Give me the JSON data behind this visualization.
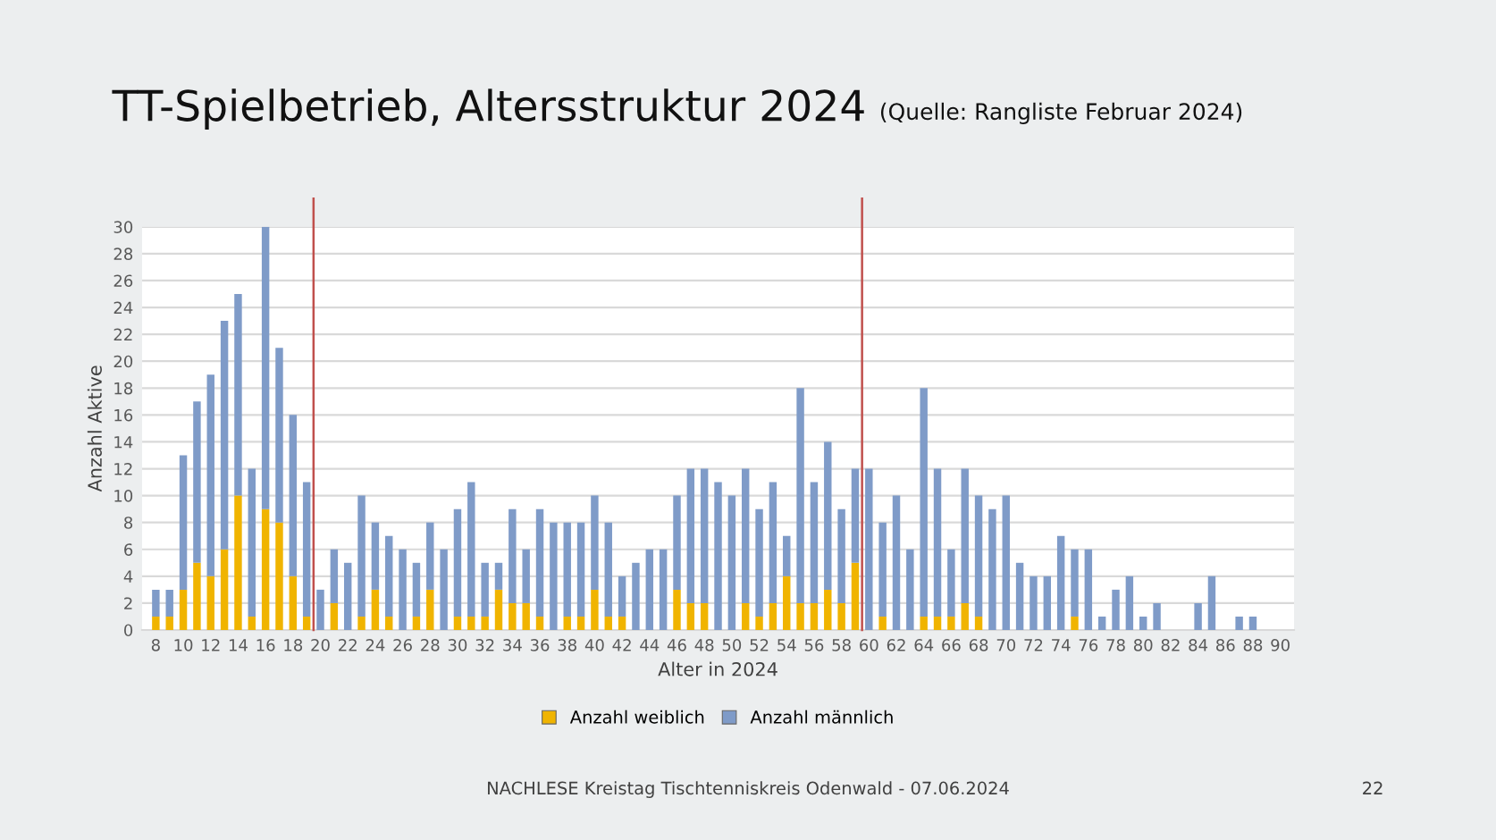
{
  "chart_data": {
    "type": "bar",
    "stacked": true,
    "title": "TT-Spielbetrieb, Altersstruktur 2024",
    "subtitle": "(Quelle: Rangliste Februar 2024)",
    "xlabel": "Alter in 2024",
    "ylabel": "Anzahl Aktive",
    "x": [
      8,
      9,
      10,
      11,
      12,
      13,
      14,
      15,
      16,
      17,
      18,
      19,
      20,
      21,
      22,
      23,
      24,
      25,
      26,
      27,
      28,
      29,
      30,
      31,
      32,
      33,
      34,
      35,
      36,
      37,
      38,
      39,
      40,
      41,
      42,
      43,
      44,
      45,
      46,
      47,
      48,
      49,
      50,
      51,
      52,
      53,
      54,
      55,
      56,
      57,
      58,
      59,
      60,
      61,
      62,
      63,
      64,
      65,
      66,
      67,
      68,
      69,
      70,
      71,
      72,
      73,
      74,
      75,
      76,
      77,
      78,
      79,
      80,
      81,
      82,
      83,
      84,
      85,
      86,
      87,
      88,
      89,
      90
    ],
    "series": [
      {
        "name": "Anzahl weiblich",
        "color": "#f0b400",
        "values": [
          1,
          1,
          3,
          5,
          4,
          6,
          10,
          1,
          9,
          8,
          4,
          1,
          0,
          2,
          0,
          1,
          3,
          1,
          0,
          1,
          3,
          0,
          1,
          1,
          1,
          3,
          2,
          2,
          1,
          0,
          1,
          1,
          3,
          1,
          1,
          0,
          0,
          0,
          3,
          2,
          2,
          0,
          0,
          2,
          1,
          2,
          4,
          2,
          2,
          3,
          2,
          5,
          0,
          1,
          0,
          0,
          1,
          1,
          1,
          2,
          1,
          0,
          0,
          0,
          0,
          0,
          0,
          1,
          0,
          0,
          0,
          0,
          0,
          0,
          0,
          0,
          0,
          0,
          0,
          0,
          0,
          0,
          0
        ]
      },
      {
        "name": "Anzahl männlich",
        "color": "#7f9bc8",
        "values": [
          2,
          2,
          10,
          12,
          15,
          17,
          15,
          11,
          21,
          13,
          12,
          10,
          3,
          4,
          5,
          9,
          5,
          6,
          6,
          4,
          5,
          6,
          8,
          10,
          4,
          2,
          7,
          4,
          8,
          8,
          7,
          7,
          7,
          7,
          3,
          5,
          6,
          6,
          7,
          10,
          10,
          11,
          10,
          10,
          8,
          9,
          3,
          16,
          9,
          11,
          7,
          7,
          12,
          7,
          10,
          6,
          17,
          11,
          5,
          10,
          9,
          9,
          10,
          5,
          4,
          4,
          7,
          5,
          6,
          1,
          3,
          4,
          1,
          2,
          0,
          0,
          2,
          4,
          0,
          1,
          1,
          0,
          0
        ]
      }
    ],
    "xlim": [
      7,
      91
    ],
    "xticks": [
      8,
      10,
      12,
      14,
      16,
      18,
      20,
      22,
      24,
      26,
      28,
      30,
      32,
      34,
      36,
      38,
      40,
      42,
      44,
      46,
      48,
      50,
      52,
      54,
      56,
      58,
      60,
      62,
      64,
      66,
      68,
      70,
      72,
      74,
      76,
      78,
      80,
      82,
      84,
      86,
      88,
      90
    ],
    "ylim": [
      0,
      30
    ],
    "yticks": [
      0,
      2,
      4,
      6,
      8,
      10,
      12,
      14,
      16,
      18,
      20,
      22,
      24,
      26,
      28,
      30
    ],
    "grid": "y",
    "legend": "bottom",
    "ref_lines": [
      {
        "axis": "x",
        "value": 19.5,
        "color": "#c0504d"
      },
      {
        "axis": "x",
        "value": 59.5,
        "color": "#c0504d"
      }
    ],
    "annotations": [
      "NACHLESE Kreistag Tischtenniskreis Odenwald - 07.06.2024",
      "22"
    ]
  }
}
